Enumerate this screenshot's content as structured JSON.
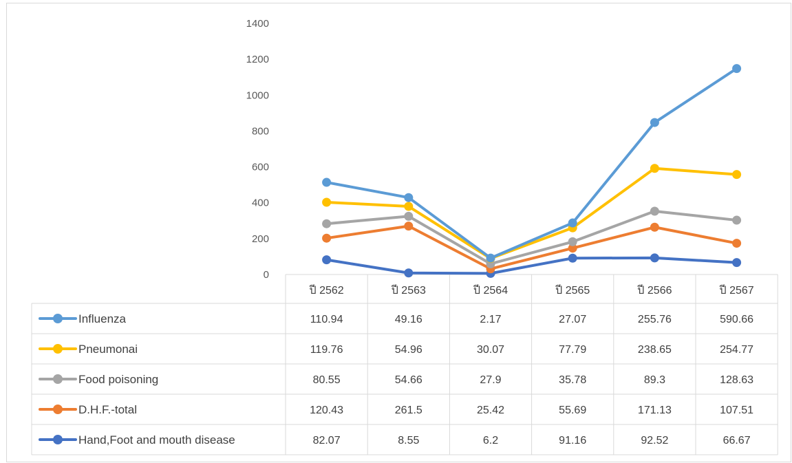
{
  "chart_data": {
    "type": "line",
    "categories": [
      "ปี 2562",
      "ปี 2563",
      "ปี 2564",
      "ปี 2565",
      "ปี 2566",
      "ปี 2567"
    ],
    "ylim": [
      0,
      1400
    ],
    "yticks": [
      "0",
      "200",
      "400",
      "600",
      "800",
      "1000",
      "1200",
      "1400"
    ],
    "stacked": true,
    "grid": false,
    "legend": "data-table",
    "series": [
      {
        "name": "Influenza",
        "color": "#5b9bd5",
        "values": [
          110.94,
          49.16,
          2.17,
          27.07,
          255.76,
          590.66
        ],
        "labels": [
          "110.94",
          "49.16",
          "2.17",
          "27.07",
          "255.76",
          "590.66"
        ]
      },
      {
        "name": "Pneumonai",
        "color": "#ffc000",
        "values": [
          119.76,
          54.96,
          30.07,
          77.79,
          238.65,
          254.77
        ],
        "labels": [
          "119.76",
          "54.96",
          "30.07",
          "77.79",
          "238.65",
          "254.77"
        ]
      },
      {
        "name": "Food poisoning",
        "color": "#a5a5a5",
        "values": [
          80.55,
          54.66,
          27.9,
          35.78,
          89.3,
          128.63
        ],
        "labels": [
          "80.55",
          "54.66",
          "27.9",
          "35.78",
          "89.3",
          "128.63"
        ]
      },
      {
        "name": "D.H.F.-total",
        "color": "#ed7d31",
        "values": [
          120.43,
          261.5,
          25.42,
          55.69,
          171.13,
          107.51
        ],
        "labels": [
          "120.43",
          "261.5",
          "25.42",
          "55.69",
          "171.13",
          "107.51"
        ]
      },
      {
        "name": "Hand,Foot and mouth disease",
        "color": "#4472c4",
        "values": [
          82.07,
          8.55,
          6.2,
          91.16,
          92.52,
          66.67
        ],
        "labels": [
          "82.07",
          "8.55",
          "6.2",
          "91.16",
          "92.52",
          "66.67"
        ]
      }
    ]
  }
}
